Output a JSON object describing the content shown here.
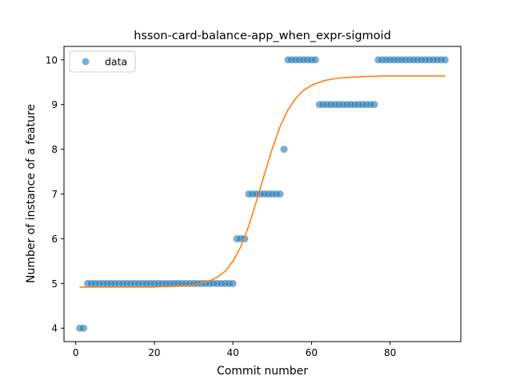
{
  "chart_data": {
    "type": "scatter",
    "title": "hsson-card-balance-app_when_expr-sigmoid",
    "xlabel": "Commit number",
    "ylabel": "Number of instance of a feature",
    "xlim": [
      -3,
      98
    ],
    "ylim": [
      3.7,
      10.3
    ],
    "xticks": [
      0,
      20,
      40,
      60,
      80
    ],
    "yticks": [
      4,
      5,
      6,
      7,
      8,
      9,
      10
    ],
    "xtick_labels": [
      "0",
      "20",
      "40",
      "60",
      "80"
    ],
    "ytick_labels": [
      "4",
      "5",
      "6",
      "7",
      "8",
      "9",
      "10"
    ],
    "grid": false,
    "legend_position": "top-left",
    "colors": {
      "data": "#1f77b4",
      "fit": "#ff7f0e"
    },
    "series": [
      {
        "name": "data",
        "kind": "scatter",
        "x": [
          1,
          2,
          3,
          4,
          5,
          6,
          7,
          8,
          9,
          10,
          11,
          12,
          13,
          14,
          15,
          16,
          17,
          18,
          19,
          20,
          21,
          22,
          23,
          24,
          25,
          26,
          27,
          28,
          29,
          30,
          31,
          32,
          33,
          34,
          35,
          36,
          37,
          38,
          39,
          40,
          41,
          42,
          43,
          44,
          45,
          46,
          47,
          48,
          49,
          50,
          51,
          52,
          53,
          54,
          55,
          56,
          57,
          58,
          59,
          60,
          61,
          62,
          63,
          64,
          65,
          66,
          67,
          68,
          69,
          70,
          71,
          72,
          73,
          74,
          75,
          76,
          77,
          78,
          79,
          80,
          81,
          82,
          83,
          84,
          85,
          86,
          87,
          88,
          89,
          90,
          91,
          92,
          93,
          94
        ],
        "y": [
          4,
          4,
          5,
          5,
          5,
          5,
          5,
          5,
          5,
          5,
          5,
          5,
          5,
          5,
          5,
          5,
          5,
          5,
          5,
          5,
          5,
          5,
          5,
          5,
          5,
          5,
          5,
          5,
          5,
          5,
          5,
          5,
          5,
          5,
          5,
          5,
          5,
          5,
          5,
          5,
          6,
          6,
          6,
          7,
          7,
          7,
          7,
          7,
          7,
          7,
          7,
          7,
          8,
          10,
          10,
          10,
          10,
          10,
          10,
          10,
          10,
          9,
          9,
          9,
          9,
          9,
          9,
          9,
          9,
          9,
          9,
          9,
          9,
          9,
          9,
          9,
          10,
          10,
          10,
          10,
          10,
          10,
          10,
          10,
          10,
          10,
          10,
          10,
          10,
          10,
          10,
          10,
          10,
          10
        ]
      },
      {
        "kind": "line",
        "x": [
          1,
          2,
          4,
          6,
          8,
          10,
          12,
          14,
          16,
          18,
          20,
          22,
          24,
          26,
          28,
          30,
          32,
          34,
          36,
          38,
          40,
          42,
          44,
          46,
          48,
          50,
          52,
          54,
          56,
          58,
          60,
          62,
          64,
          66,
          68,
          70,
          72,
          74,
          76,
          78,
          80,
          82,
          84,
          86,
          88,
          90,
          92,
          94
        ],
        "y": [
          4.92,
          4.92,
          4.92,
          4.92,
          4.92,
          4.92,
          4.92,
          4.92,
          4.92,
          4.92,
          4.92,
          4.93,
          4.93,
          4.94,
          4.95,
          4.97,
          5.0,
          5.05,
          5.14,
          5.27,
          5.49,
          5.82,
          6.28,
          6.84,
          7.44,
          8.01,
          8.51,
          8.88,
          9.14,
          9.32,
          9.43,
          9.5,
          9.55,
          9.58,
          9.6,
          9.61,
          9.62,
          9.63,
          9.63,
          9.64,
          9.64,
          9.64,
          9.64,
          9.64,
          9.64,
          9.64,
          9.64,
          9.64
        ]
      }
    ]
  }
}
